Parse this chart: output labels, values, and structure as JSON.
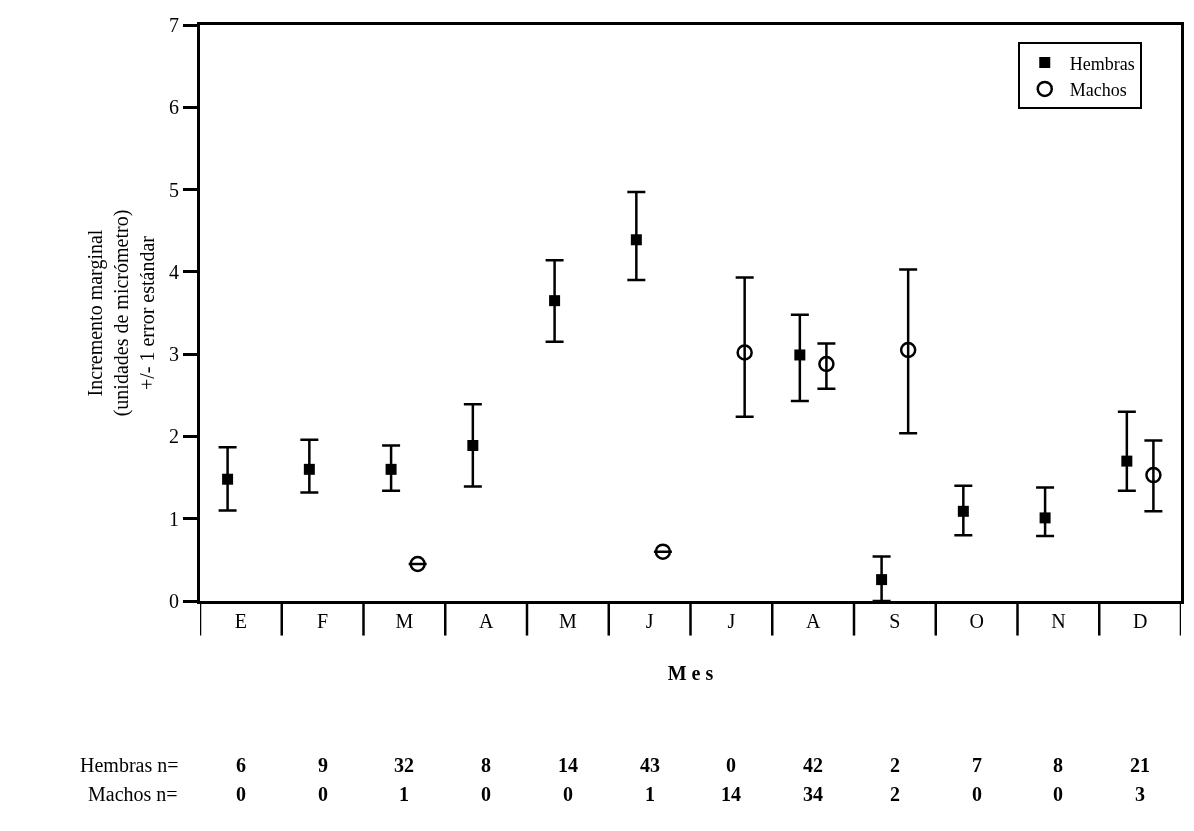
{
  "chart_data": {
    "type": "scatter",
    "xlabel": "M e s",
    "ylabel": "Incremento marginal\n(unidades de micrómetro)\n+/- 1 error estándar",
    "categories": [
      "E",
      "F",
      "M",
      "A",
      "M",
      "J",
      "J",
      "A",
      "S",
      "O",
      "N",
      "D"
    ],
    "series": [
      {
        "name": "Hembras",
        "color": "#000000",
        "marker": "square",
        "values": [
          1.48,
          1.6,
          1.6,
          1.89,
          3.65,
          4.39,
          null,
          2.99,
          0.26,
          1.09,
          1.01,
          1.7
        ],
        "errors": [
          [
            1.1,
            1.87
          ],
          [
            1.32,
            1.96
          ],
          [
            1.34,
            1.89
          ],
          [
            1.39,
            2.39
          ],
          [
            3.15,
            4.14
          ],
          [
            3.9,
            4.97
          ],
          null,
          [
            2.43,
            3.48
          ],
          [
            0,
            0.54
          ],
          [
            0.8,
            1.4
          ],
          [
            0.79,
            1.38
          ],
          [
            1.34,
            2.3
          ]
        ]
      },
      {
        "name": "Machos",
        "color": "#000000",
        "marker": "circle",
        "values": [
          null,
          null,
          0.45,
          null,
          null,
          0.6,
          3.02,
          2.88,
          3.05,
          null,
          null,
          1.53
        ],
        "errors": [
          null,
          null,
          null,
          null,
          null,
          null,
          [
            2.24,
            3.93
          ],
          [
            2.58,
            3.13
          ],
          [
            2.04,
            4.03
          ],
          null,
          null,
          [
            1.09,
            1.95
          ]
        ]
      }
    ],
    "ylim": [
      0,
      7
    ],
    "yticks": [
      0,
      1,
      2,
      3,
      4,
      5,
      6,
      7
    ],
    "legend": "top right",
    "annotations": [
      "Hembras n=",
      "6",
      "9",
      "32",
      "8",
      "14",
      "43",
      "0",
      "42",
      "2",
      "7",
      "8",
      "21",
      "Machos n=",
      "0",
      "0",
      "1",
      "0",
      "0",
      "1",
      "14",
      "34",
      "2",
      "0",
      "0",
      "3"
    ]
  }
}
